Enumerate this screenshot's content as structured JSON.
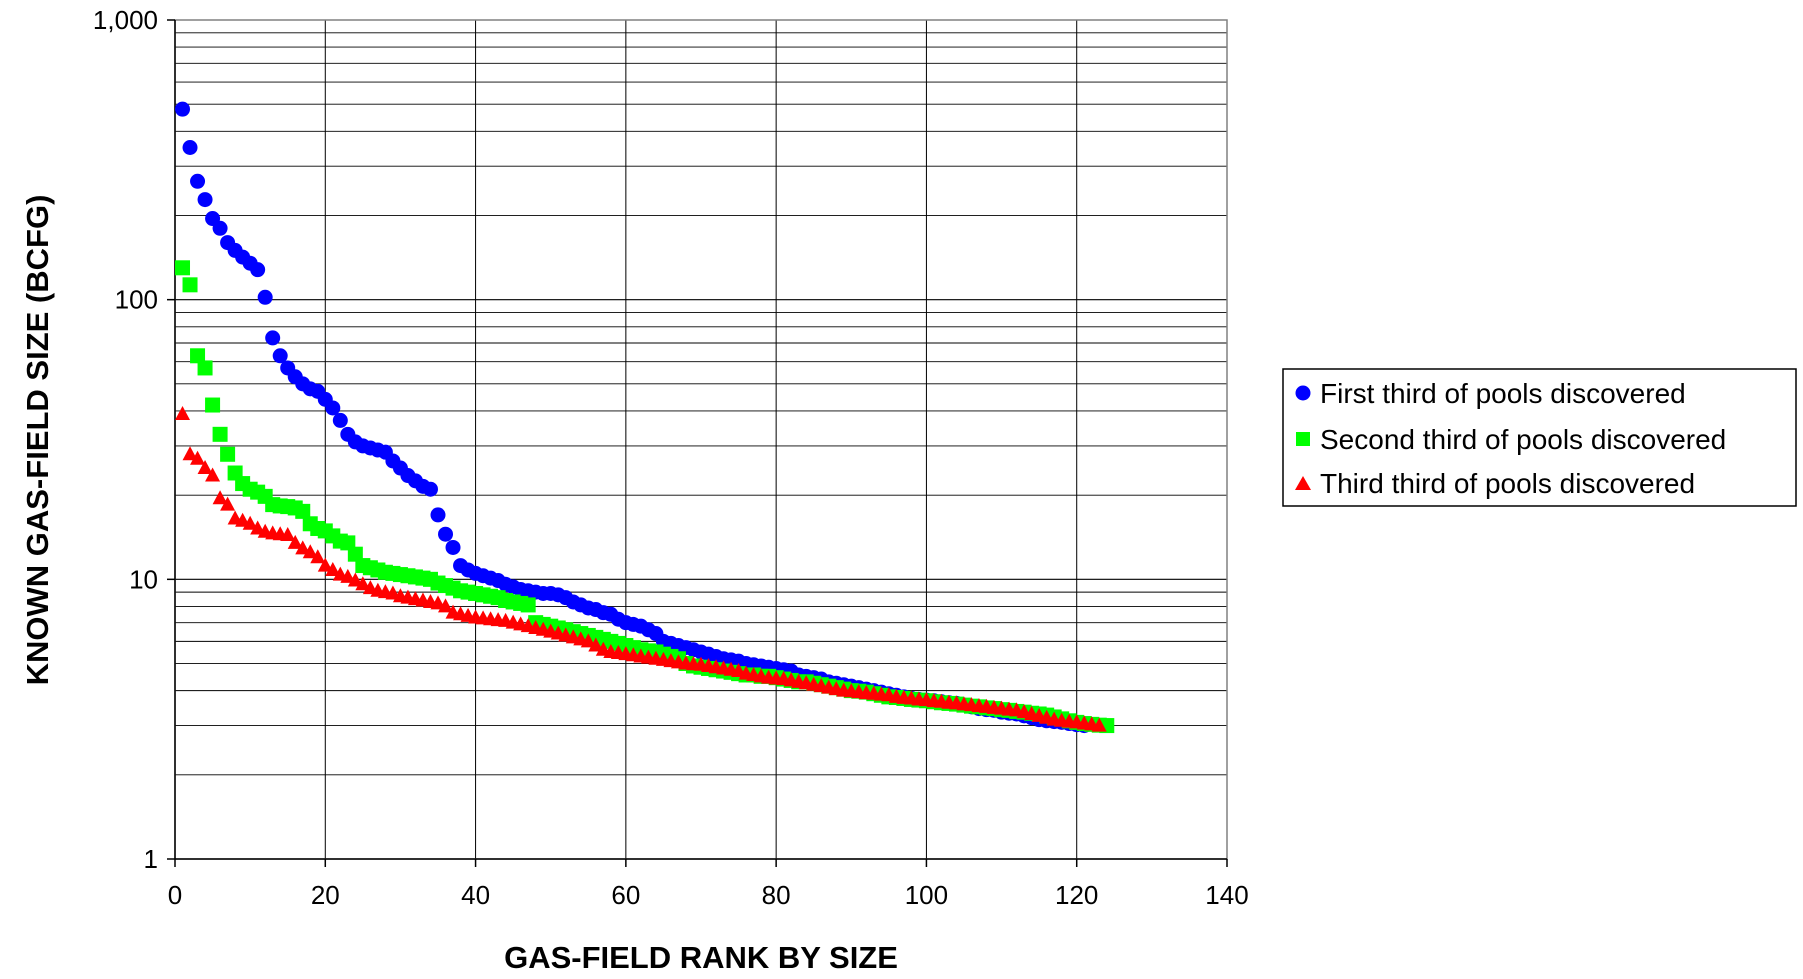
{
  "chart_data": {
    "type": "scatter",
    "title": "",
    "xlabel": "GAS-FIELD RANK BY SIZE",
    "ylabel": "KNOWN GAS-FIELD SIZE (BCFG)",
    "xlim": [
      0,
      140
    ],
    "ylim": [
      1,
      1000
    ],
    "y_scale": "log",
    "x_ticks": [
      0,
      20,
      40,
      60,
      80,
      100,
      120,
      140
    ],
    "x_tick_labels": [
      "0",
      "20",
      "40",
      "60",
      "80",
      "100",
      "120",
      "140"
    ],
    "y_ticks": [
      1,
      10,
      100,
      1000
    ],
    "y_tick_labels": [
      "1",
      "10",
      "100",
      "1,000"
    ],
    "grid": true,
    "legend_position": "right",
    "series": [
      {
        "name": "First third of pools discovered",
        "color": "#0000FF",
        "marker": "circle",
        "x_start": 1,
        "values": [
          480,
          350,
          265,
          228,
          195,
          180,
          160,
          150,
          142,
          135,
          128,
          102,
          73,
          63,
          57,
          53,
          50,
          48,
          47,
          44,
          41,
          37,
          33,
          31,
          30,
          29.5,
          29,
          28.5,
          26.5,
          25,
          23.5,
          22.5,
          21.5,
          21,
          17,
          14.5,
          13,
          11.2,
          10.8,
          10.5,
          10.3,
          10.1,
          9.9,
          9.6,
          9.4,
          9.2,
          9.1,
          9.0,
          8.9,
          8.9,
          8.8,
          8.6,
          8.3,
          8.1,
          7.9,
          7.8,
          7.6,
          7.5,
          7.2,
          7.0,
          6.9,
          6.8,
          6.6,
          6.4,
          6.0,
          5.9,
          5.8,
          5.7,
          5.6,
          5.5,
          5.4,
          5.3,
          5.2,
          5.15,
          5.1,
          5.0,
          4.95,
          4.9,
          4.85,
          4.8,
          4.75,
          4.7,
          4.55,
          4.5,
          4.45,
          4.4,
          4.3,
          4.25,
          4.2,
          4.15,
          4.1,
          4.05,
          4.0,
          3.95,
          3.9,
          3.85,
          3.8,
          3.75,
          3.72,
          3.7,
          3.68,
          3.65,
          3.62,
          3.6,
          3.55,
          3.5,
          3.45,
          3.42,
          3.4,
          3.35,
          3.32,
          3.3,
          3.25,
          3.2,
          3.15,
          3.12,
          3.1,
          3.08,
          3.05,
          3.02,
          3.0
        ]
      },
      {
        "name": "Second third of pools discovered",
        "color": "#00FF00",
        "marker": "square",
        "x_start": 1,
        "values": [
          130,
          113,
          63,
          57,
          42,
          33,
          28,
          24,
          22,
          21,
          20.5,
          19.8,
          18.5,
          18.3,
          18.2,
          18.0,
          17.5,
          15.8,
          15.2,
          14.9,
          14.3,
          13.7,
          13.5,
          12.3,
          11.2,
          11.0,
          10.8,
          10.6,
          10.5,
          10.4,
          10.3,
          10.2,
          10.1,
          10.0,
          9.7,
          9.5,
          9.3,
          9.1,
          9.0,
          8.9,
          8.8,
          8.7,
          8.6,
          8.4,
          8.3,
          8.2,
          8.1,
          7.0,
          6.9,
          6.8,
          6.7,
          6.6,
          6.5,
          6.4,
          6.3,
          6.2,
          6.1,
          6.0,
          5.9,
          5.8,
          5.7,
          5.6,
          5.55,
          5.5,
          5.4,
          5.3,
          5.2,
          5.0,
          4.9,
          4.85,
          4.8,
          4.75,
          4.7,
          4.65,
          4.6,
          4.55,
          4.55,
          4.5,
          4.5,
          4.45,
          4.4,
          4.35,
          4.3,
          4.3,
          4.25,
          4.2,
          4.15,
          4.1,
          4.05,
          4.0,
          3.98,
          3.95,
          3.9,
          3.85,
          3.8,
          3.78,
          3.75,
          3.72,
          3.7,
          3.68,
          3.65,
          3.62,
          3.6,
          3.58,
          3.55,
          3.52,
          3.5,
          3.47,
          3.45,
          3.42,
          3.4,
          3.37,
          3.35,
          3.32,
          3.3,
          3.27,
          3.22,
          3.17,
          3.12,
          3.08,
          3.05,
          3.03,
          3.01,
          3.0
        ]
      },
      {
        "name": "Third third of pools discovered",
        "color": "#FF0000",
        "marker": "triangle",
        "x_start": 1,
        "values": [
          39,
          28,
          27,
          25,
          23.5,
          19.5,
          18.5,
          16.5,
          16.2,
          15.8,
          15.2,
          14.8,
          14.6,
          14.5,
          14.4,
          13.5,
          12.9,
          12.5,
          12.0,
          11.2,
          10.8,
          10.4,
          10.2,
          9.9,
          9.6,
          9.3,
          9.1,
          9.0,
          8.9,
          8.7,
          8.6,
          8.5,
          8.4,
          8.3,
          8.2,
          8.0,
          7.6,
          7.5,
          7.4,
          7.3,
          7.25,
          7.2,
          7.15,
          7.1,
          7.0,
          6.9,
          6.8,
          6.7,
          6.6,
          6.5,
          6.4,
          6.3,
          6.2,
          6.1,
          6.0,
          5.8,
          5.6,
          5.5,
          5.45,
          5.4,
          5.35,
          5.3,
          5.25,
          5.2,
          5.15,
          5.1,
          5.05,
          5.0,
          4.97,
          4.95,
          4.9,
          4.85,
          4.8,
          4.75,
          4.7,
          4.6,
          4.55,
          4.5,
          4.45,
          4.42,
          4.4,
          4.35,
          4.3,
          4.25,
          4.2,
          4.15,
          4.1,
          4.05,
          4.0,
          3.98,
          3.95,
          3.92,
          3.9,
          3.87,
          3.85,
          3.8,
          3.77,
          3.75,
          3.72,
          3.7,
          3.67,
          3.65,
          3.62,
          3.6,
          3.57,
          3.55,
          3.52,
          3.5,
          3.47,
          3.45,
          3.42,
          3.4,
          3.35,
          3.3,
          3.25,
          3.2,
          3.15,
          3.12,
          3.1,
          3.08,
          3.05,
          3.03,
          3.0
        ]
      }
    ]
  }
}
